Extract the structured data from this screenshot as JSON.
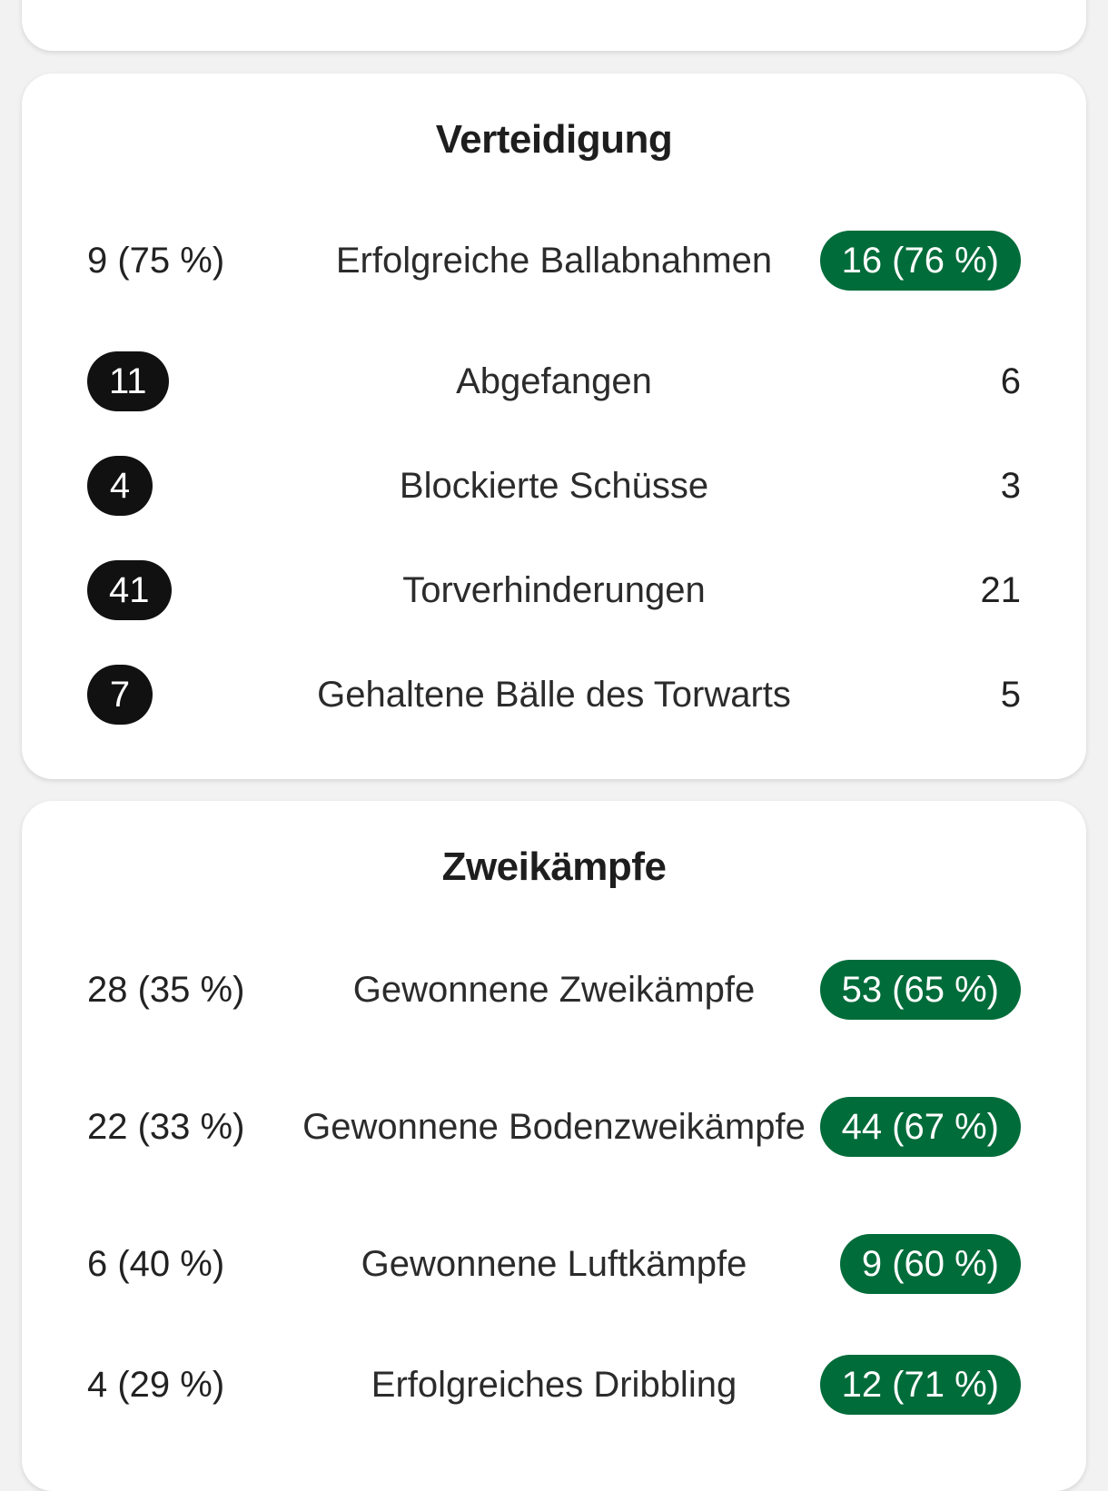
{
  "colors": {
    "background": "#f2f2f2",
    "card": "#ffffff",
    "highlight_green": "#006c3a",
    "highlight_dark": "#111111"
  },
  "sections": {
    "defense": {
      "title": "Verteidigung",
      "rows": [
        {
          "label": "Erfolgreiche Ballabnahmen",
          "left": "9 (75 %)",
          "right": "16 (76 %)",
          "winner": "right"
        },
        {
          "label": "Abgefangen",
          "left": "11",
          "right": "6",
          "winner": "left"
        },
        {
          "label": "Blockierte Schüsse",
          "left": "4",
          "right": "3",
          "winner": "left"
        },
        {
          "label": "Torverhinderungen",
          "left": "41",
          "right": "21",
          "winner": "left"
        },
        {
          "label": "Gehaltene Bälle des Torwarts",
          "left": "7",
          "right": "5",
          "winner": "left"
        }
      ]
    },
    "duels": {
      "title": "Zweikämpfe",
      "rows": [
        {
          "label": "Gewonnene Zweikämpfe",
          "left": "28 (35 %)",
          "right": "53 (65 %)",
          "winner": "right"
        },
        {
          "label": "Gewonnene Bodenzweikämpfe",
          "left": "22 (33 %)",
          "right": "44 (67 %)",
          "winner": "right"
        },
        {
          "label": "Gewonnene Luftkämpfe",
          "left": "6 (40 %)",
          "right": "9 (60 %)",
          "winner": "right"
        },
        {
          "label": "Erfolgreiches Dribbling",
          "left": "4 (29 %)",
          "right": "12 (71 %)",
          "winner": "right"
        }
      ]
    }
  }
}
